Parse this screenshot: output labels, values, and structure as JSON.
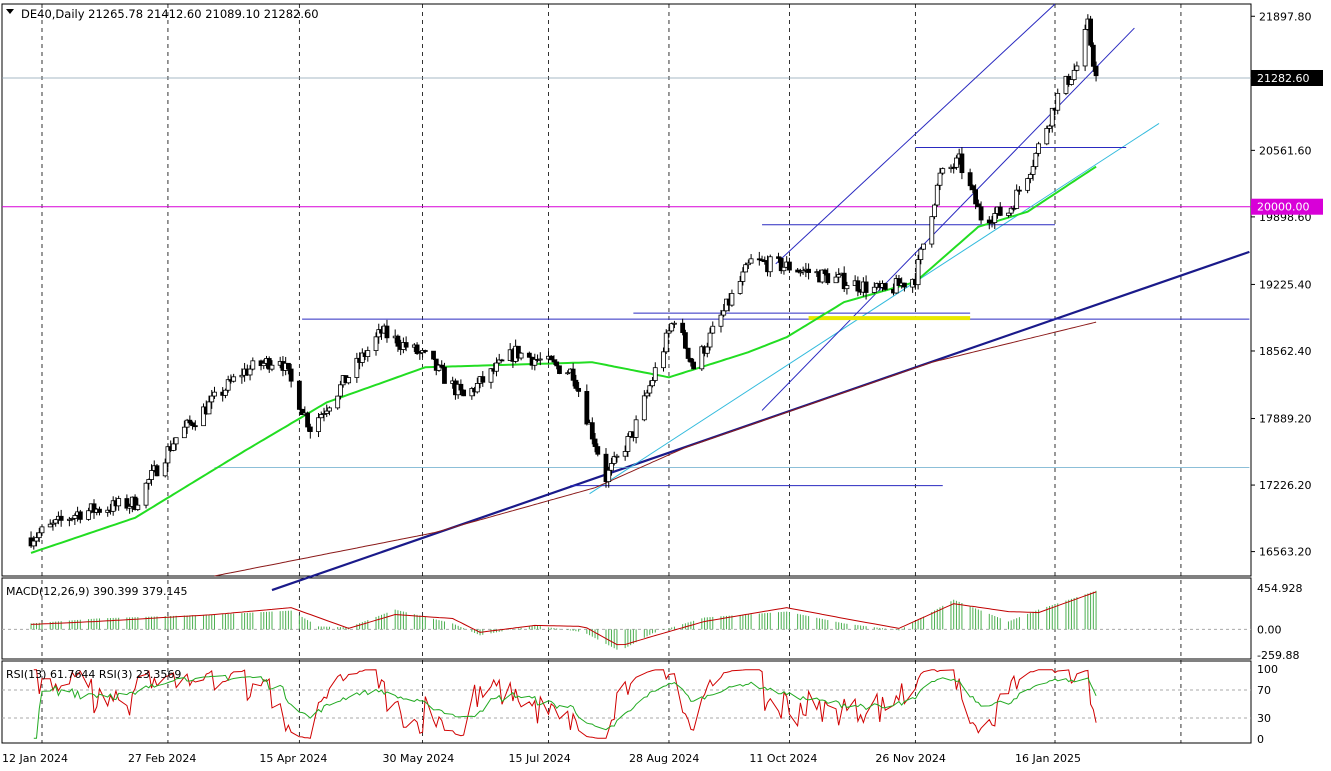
{
  "chart_data": {
    "type": "candlestick",
    "symbol": "DE40",
    "timeframe": "Daily",
    "ohlc_text": "21265.78 21412.60 21089.10 21282.60",
    "header_text": "DE40,Daily  21265.78 21412.60 21089.10 21282.60",
    "last_price": 21282.6,
    "last_price_label": "21282.60",
    "y_ticks": [
      "21897.80",
      "20561.60",
      "19898.60",
      "19225.40",
      "18562.40",
      "17889.20",
      "17226.20",
      "16563.20"
    ],
    "y_range": [
      16320,
      22020
    ],
    "date_labels": [
      "12 Jan 2024",
      "27 Feb 2024",
      "15 Apr 2024",
      "30 May 2024",
      "15 Jul 2024",
      "28 Aug 2024",
      "11 Oct 2024",
      "26 Nov 2024",
      "16 Jan 2025"
    ],
    "horizontal_levels": [
      {
        "value": 20000,
        "label": "20000.00",
        "color": "#d800d8"
      }
    ],
    "price_path": [
      {
        "date": "2024-01-08",
        "close": 16700
      },
      {
        "date": "2024-01-25",
        "close": 16950
      },
      {
        "date": "2024-02-15",
        "close": 17050
      },
      {
        "date": "2024-03-01",
        "close": 17700
      },
      {
        "date": "2024-03-25",
        "close": 18350
      },
      {
        "date": "2024-04-08",
        "close": 18500
      },
      {
        "date": "2024-04-19",
        "close": 17800
      },
      {
        "date": "2024-05-15",
        "close": 18750
      },
      {
        "date": "2024-05-31",
        "close": 18500
      },
      {
        "date": "2024-06-14",
        "close": 18100
      },
      {
        "date": "2024-07-03",
        "close": 18550
      },
      {
        "date": "2024-07-24",
        "close": 18350
      },
      {
        "date": "2024-08-05",
        "close": 17300
      },
      {
        "date": "2024-08-15",
        "close": 17750
      },
      {
        "date": "2024-08-30",
        "close": 18900
      },
      {
        "date": "2024-09-06",
        "close": 18400
      },
      {
        "date": "2024-09-27",
        "close": 19450
      },
      {
        "date": "2024-10-11",
        "close": 19400
      },
      {
        "date": "2024-11-01",
        "close": 19250
      },
      {
        "date": "2024-11-15",
        "close": 19150
      },
      {
        "date": "2024-11-26",
        "close": 19300
      },
      {
        "date": "2024-12-05",
        "close": 20300
      },
      {
        "date": "2024-12-12",
        "close": 20450
      },
      {
        "date": "2024-12-20",
        "close": 19900
      },
      {
        "date": "2024-12-30",
        "close": 19950
      },
      {
        "date": "2025-01-08",
        "close": 20450
      },
      {
        "date": "2025-01-17",
        "close": 21100
      },
      {
        "date": "2025-01-24",
        "close": 21400
      },
      {
        "date": "2025-01-28",
        "close": 21800
      },
      {
        "date": "2025-01-31",
        "close": 21282.6
      }
    ],
    "sma_green": [
      {
        "date": "2024-01-08",
        "value": 16550
      },
      {
        "date": "2024-02-15",
        "value": 16900
      },
      {
        "date": "2024-03-25",
        "value": 17550
      },
      {
        "date": "2024-04-25",
        "value": 18050
      },
      {
        "date": "2024-05-31",
        "value": 18400
      },
      {
        "date": "2024-07-31",
        "value": 18450
      },
      {
        "date": "2024-08-28",
        "value": 18300
      },
      {
        "date": "2024-09-26",
        "value": 18550
      },
      {
        "date": "2024-10-10",
        "value": 18700
      },
      {
        "date": "2024-10-31",
        "value": 19050
      },
      {
        "date": "2024-11-26",
        "value": 19250
      },
      {
        "date": "2024-12-19",
        "value": 19800
      },
      {
        "date": "2025-01-06",
        "value": 19950
      },
      {
        "date": "2025-01-31",
        "value": 20400
      }
    ],
    "sma_brown": [
      {
        "date": "2024-03-15",
        "value": 16320
      },
      {
        "date": "2024-06-03",
        "value": 16750
      },
      {
        "date": "2024-08-01",
        "value": 17200
      },
      {
        "date": "2024-09-03",
        "value": 17600
      },
      {
        "date": "2024-10-10",
        "value": 17950
      },
      {
        "date": "2024-12-02",
        "value": 18450
      },
      {
        "date": "2025-01-31",
        "value": 18850
      }
    ],
    "macd": {
      "label": "MACD(12,26,9) 390.399 379.145",
      "y_ticks": [
        "454.928",
        "0.00",
        "-259.88"
      ],
      "y_range": [
        -300,
        520
      ],
      "points": [
        {
          "date": "2024-01-08",
          "hist": 60,
          "signal": 50
        },
        {
          "date": "2024-02-01",
          "hist": 110,
          "signal": 80
        },
        {
          "date": "2024-03-15",
          "hist": 150,
          "signal": 150
        },
        {
          "date": "2024-04-12",
          "hist": 190,
          "signal": 220
        },
        {
          "date": "2024-04-22",
          "hist": 30,
          "signal": 120
        },
        {
          "date": "2024-05-03",
          "hist": 20,
          "signal": 10
        },
        {
          "date": "2024-05-20",
          "hist": 200,
          "signal": 150
        },
        {
          "date": "2024-06-10",
          "hist": 60,
          "signal": 110
        },
        {
          "date": "2024-06-20",
          "hist": -60,
          "signal": -30
        },
        {
          "date": "2024-07-10",
          "hist": 40,
          "signal": 40
        },
        {
          "date": "2024-07-28",
          "hist": -30,
          "signal": 30
        },
        {
          "date": "2024-08-10",
          "hist": -220,
          "signal": -170
        },
        {
          "date": "2024-08-22",
          "hist": -40,
          "signal": -70
        },
        {
          "date": "2024-09-10",
          "hist": 120,
          "signal": 80
        },
        {
          "date": "2024-10-10",
          "hist": 180,
          "signal": 220
        },
        {
          "date": "2024-10-31",
          "hist": 60,
          "signal": 110
        },
        {
          "date": "2024-11-20",
          "hist": -10,
          "signal": 10
        },
        {
          "date": "2024-12-10",
          "hist": 300,
          "signal": 260
        },
        {
          "date": "2024-12-30",
          "hist": 80,
          "signal": 180
        },
        {
          "date": "2025-01-10",
          "hist": 200,
          "signal": 170
        },
        {
          "date": "2025-01-31",
          "hist": 390.399,
          "signal": 379.145
        }
      ]
    },
    "rsi": {
      "label": "RSI(13) 61.7644  RSI(3) 23.3569",
      "y_ticks": [
        "100",
        "70",
        "30",
        "0"
      ],
      "y_range": [
        0,
        100
      ],
      "rsi13_value": 61.7644,
      "rsi3_value": 23.3569
    }
  }
}
